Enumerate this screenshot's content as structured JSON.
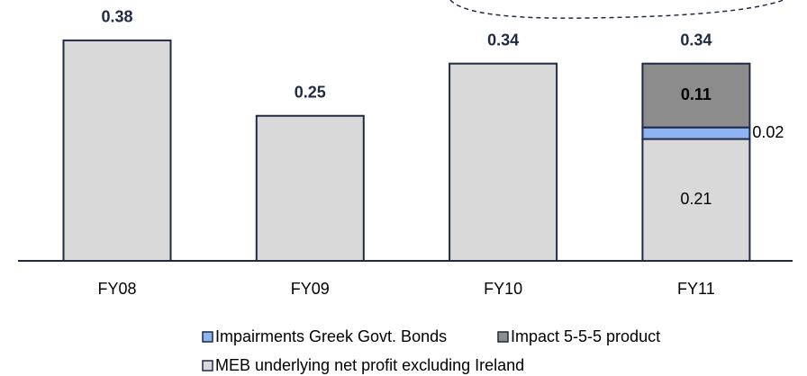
{
  "chart_data": {
    "type": "stacked_bar",
    "categories": [
      "FY08",
      "FY09",
      "FY10",
      "FY11"
    ],
    "series": [
      {
        "name": "MEB underlying net profit excluding Ireland",
        "color": "#d9d9d9",
        "values": [
          0.38,
          0.25,
          0.34,
          0.21
        ]
      },
      {
        "name": "Impairments Greek Govt. Bonds",
        "color": "#8db3f2",
        "values": [
          null,
          null,
          null,
          0.02
        ]
      },
      {
        "name": "Impact 5-5-5 product",
        "color": "#8c8c8c",
        "values": [
          null,
          null,
          null,
          0.11
        ]
      }
    ],
    "totals": [
      0.38,
      0.25,
      0.34,
      0.34
    ]
  }
}
